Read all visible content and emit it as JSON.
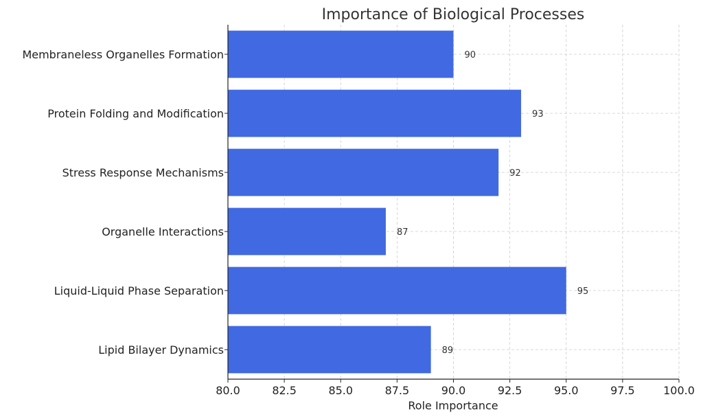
{
  "chart_data": {
    "type": "bar",
    "orientation": "horizontal",
    "title": "Importance of Biological Processes",
    "xlabel": "Role Importance",
    "ylabel": "",
    "xlim": [
      80,
      100
    ],
    "xticks": [
      "80.0",
      "82.5",
      "85.0",
      "87.5",
      "90.0",
      "92.5",
      "95.0",
      "97.5",
      "100.0"
    ],
    "categories": [
      "Membraneless Organelles Formation",
      "Protein Folding and Modification",
      "Stress Response Mechanisms",
      "Organelle Interactions",
      "Liquid-Liquid Phase Separation",
      "Lipid Bilayer Dynamics"
    ],
    "values": [
      90,
      93,
      92,
      87,
      95,
      89
    ],
    "data_labels": [
      "90",
      "93",
      "92",
      "87",
      "95",
      "89"
    ],
    "bar_color": "#4169e1",
    "grid": true
  }
}
